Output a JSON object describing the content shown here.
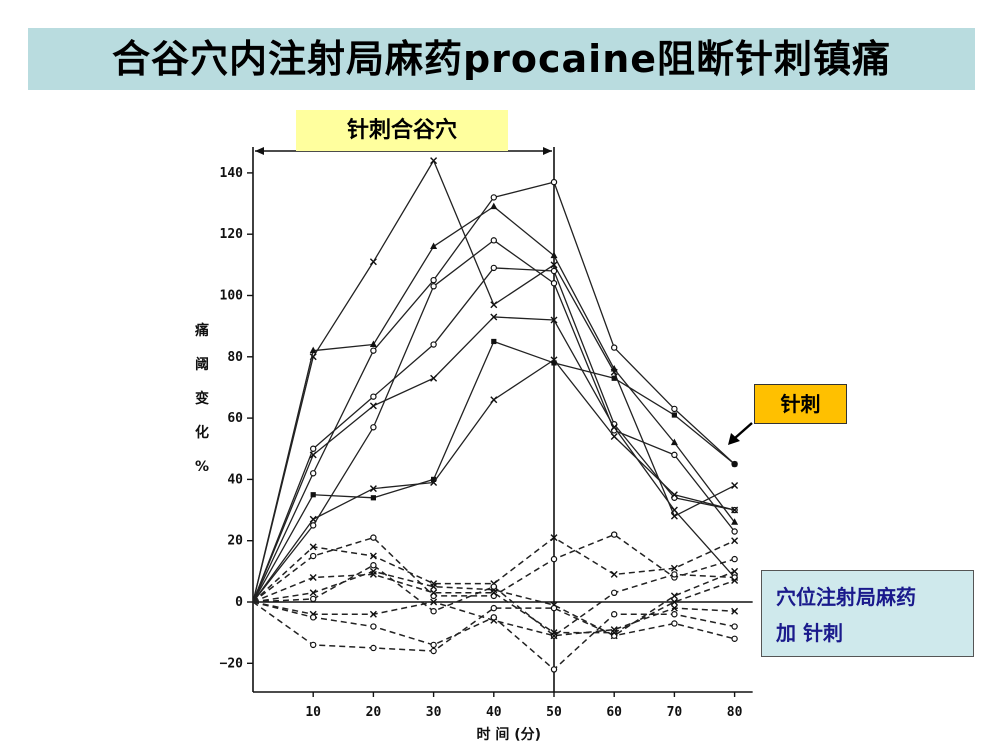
{
  "title": "合谷穴内注射局麻药procaine阻断针刺镇痛",
  "labels": {
    "needle_span": "针刺合谷穴",
    "acupuncture": "针刺",
    "block_line1": "穴位注射局麻药",
    "block_line2": "加 针刺"
  },
  "colors": {
    "title_bg": "#b9dcdf",
    "needle_bg": "#ffff9e",
    "acu_bg": "#ffc000",
    "block_bg": "#cfe9ec",
    "block_text": "#1a1a8c"
  },
  "chart_data": {
    "type": "line",
    "xlabel": "时 间 (分)",
    "ylabel_chars": [
      "痛",
      "阈",
      "变",
      "化",
      "%"
    ],
    "x": [
      0,
      10,
      20,
      30,
      40,
      50,
      60,
      70,
      80
    ],
    "xticks": [
      "10",
      "20",
      "30",
      "40",
      "50",
      "60",
      "70",
      "80"
    ],
    "yticks": [
      "140",
      "120",
      "100",
      "80",
      "60",
      "40",
      "20",
      "0",
      "-20"
    ],
    "ylim": [
      -28,
      145
    ],
    "xlim": [
      0,
      83
    ],
    "needle_end_x": 50,
    "series": [
      {
        "style": "solid",
        "marker": "x",
        "values": [
          0,
          80,
          111,
          144,
          97,
          110,
          75,
          28,
          38
        ]
      },
      {
        "style": "solid",
        "marker": "tri",
        "values": [
          0,
          82,
          84,
          116,
          129,
          113,
          76,
          52,
          26
        ]
      },
      {
        "style": "solid",
        "marker": "o",
        "values": [
          0,
          42,
          82,
          105,
          132,
          137,
          83,
          63,
          45
        ]
      },
      {
        "style": "solid",
        "marker": "o",
        "values": [
          0,
          25,
          57,
          103,
          118,
          104,
          56,
          48,
          23
        ]
      },
      {
        "style": "solid",
        "marker": "o",
        "values": [
          0,
          50,
          67,
          84,
          109,
          108,
          58,
          34,
          30
        ]
      },
      {
        "style": "solid",
        "marker": "x",
        "values": [
          0,
          48,
          64,
          73,
          93,
          92,
          57,
          30,
          8
        ]
      },
      {
        "style": "solid",
        "marker": "sq",
        "values": [
          0,
          35,
          34,
          40,
          85,
          78,
          73,
          61,
          45
        ]
      },
      {
        "style": "solid",
        "marker": "x",
        "values": [
          0,
          27,
          37,
          39,
          66,
          79,
          54,
          35,
          30
        ]
      },
      {
        "style": "dashed",
        "marker": "x",
        "values": [
          0,
          18,
          15,
          6,
          6,
          21,
          9,
          11,
          20
        ]
      },
      {
        "style": "dashed",
        "marker": "o",
        "values": [
          0,
          15,
          21,
          2,
          2,
          14,
          22,
          8,
          14
        ]
      },
      {
        "style": "dashed",
        "marker": "x",
        "values": [
          0,
          3,
          10,
          5,
          4,
          -1,
          -11,
          2,
          10
        ]
      },
      {
        "style": "dashed",
        "marker": "o",
        "values": [
          0,
          1,
          12,
          -3,
          5,
          -11,
          3,
          9,
          8
        ]
      },
      {
        "style": "dashed",
        "marker": "x",
        "values": [
          0,
          -4,
          -4,
          0,
          -6,
          -11,
          -9,
          -2,
          -3
        ]
      },
      {
        "style": "dashed",
        "marker": "o",
        "values": [
          0,
          -5,
          -8,
          -14,
          -5,
          -22,
          -4,
          -4,
          -8
        ]
      },
      {
        "style": "dashed",
        "marker": "o",
        "values": [
          0,
          -14,
          -15,
          -16,
          -2,
          -2,
          -11,
          -7,
          -12
        ]
      },
      {
        "style": "dashed",
        "marker": "x",
        "values": [
          0,
          8,
          9,
          3,
          3,
          -10,
          -10,
          0,
          7
        ]
      }
    ]
  }
}
